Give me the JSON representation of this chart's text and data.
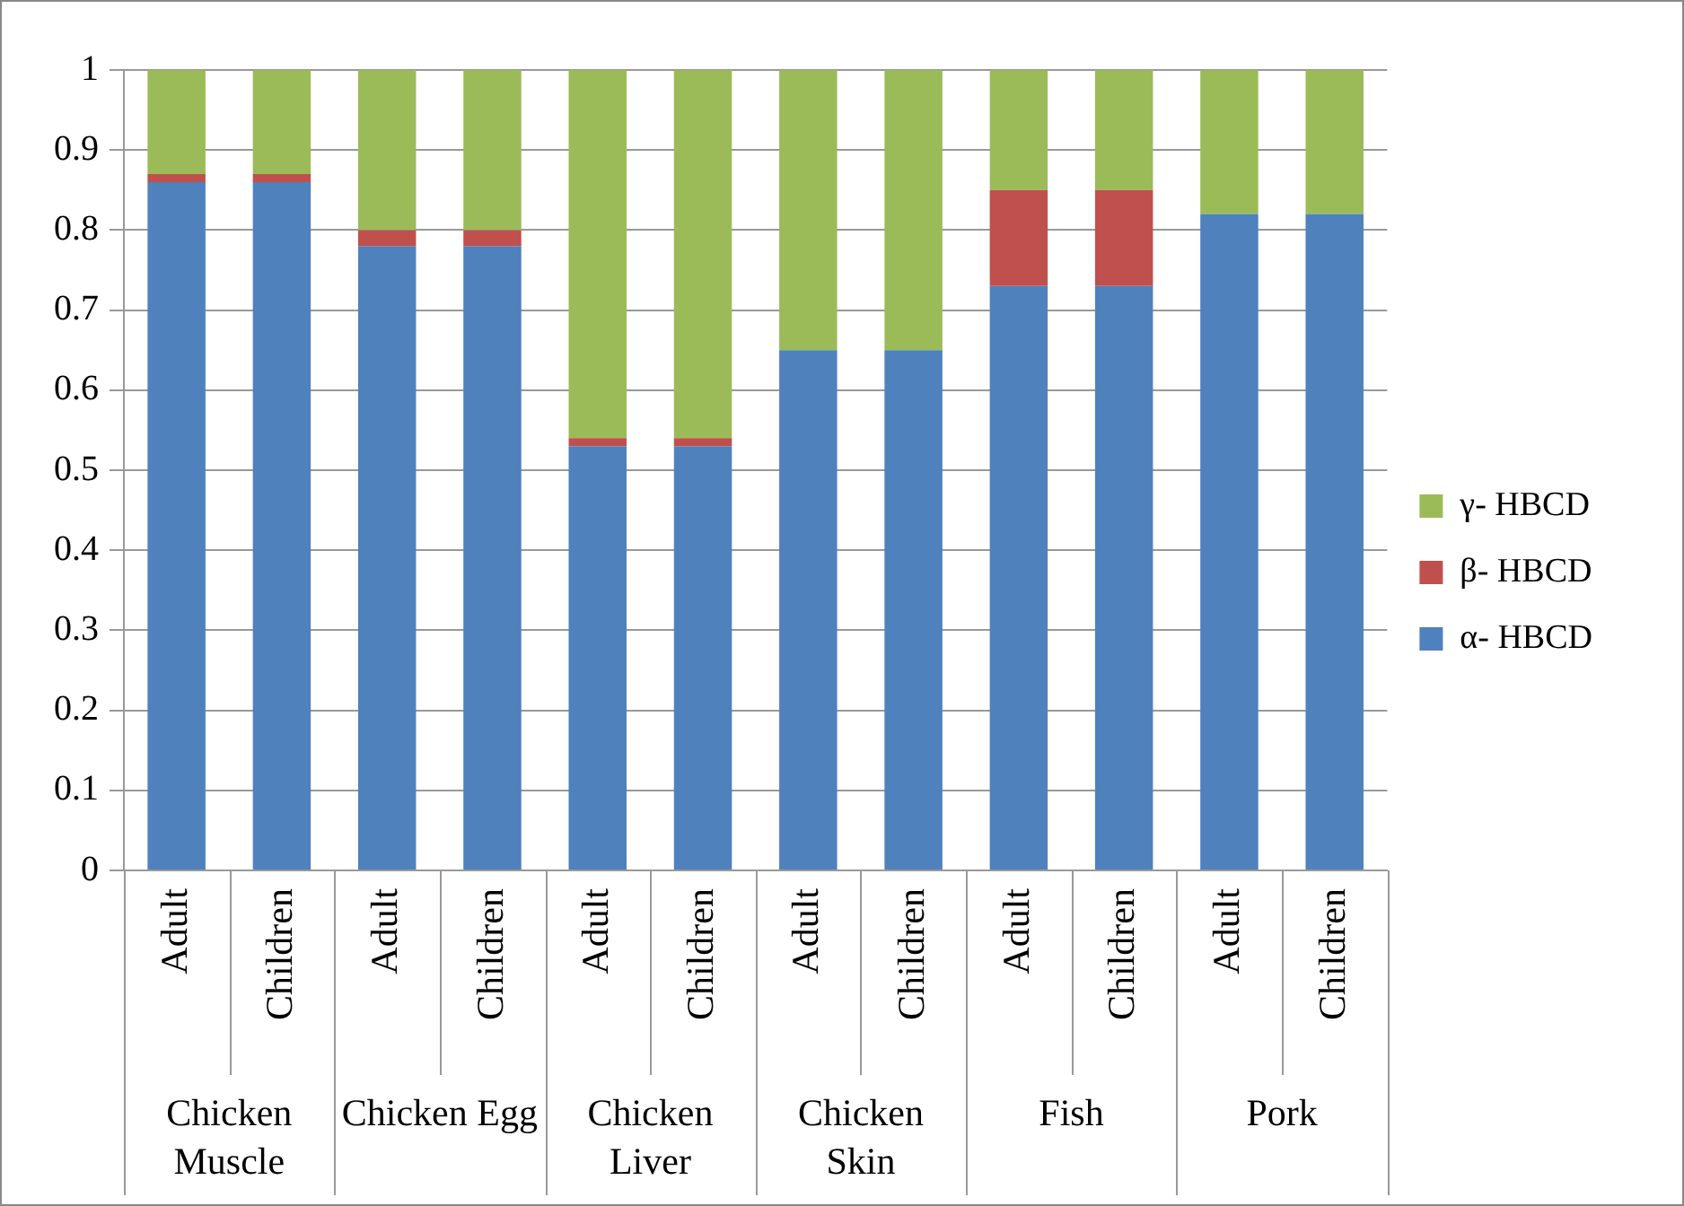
{
  "chart_data": {
    "type": "bar",
    "stacked": true,
    "categories": [
      "Adult",
      "Children",
      "Adult",
      "Children",
      "Adult",
      "Children",
      "Adult",
      "Children",
      "Adult",
      "Children",
      "Adult",
      "Children"
    ],
    "series": [
      {
        "name": "α- HBCD",
        "color": "#4f81bd",
        "values": [
          0.86,
          0.86,
          0.78,
          0.78,
          0.53,
          0.53,
          0.65,
          0.65,
          0.73,
          0.73,
          0.82,
          0.82
        ]
      },
      {
        "name": "β- HBCD",
        "color": "#c0504d",
        "values": [
          0.01,
          0.01,
          0.02,
          0.02,
          0.01,
          0.01,
          0,
          0,
          0.12,
          0.12,
          0,
          0
        ]
      },
      {
        "name": "γ- HBCD",
        "color": "#9bbb59",
        "values": [
          0.13,
          0.13,
          0.2,
          0.2,
          0.46,
          0.46,
          0.35,
          0.35,
          0.15,
          0.15,
          0.18,
          0.18
        ]
      }
    ],
    "annotations": [
      "Chicken Muscle",
      "Chicken Egg",
      "Chicken Liver",
      "Chicken Skin",
      "Fish",
      "Pork"
    ],
    "ylim": [
      0,
      1
    ],
    "yticks": [
      0,
      0.1,
      0.2,
      0.3,
      0.4,
      0.5,
      0.6,
      0.7,
      0.8,
      0.9,
      1
    ],
    "grid": "y",
    "legend": "right"
  }
}
